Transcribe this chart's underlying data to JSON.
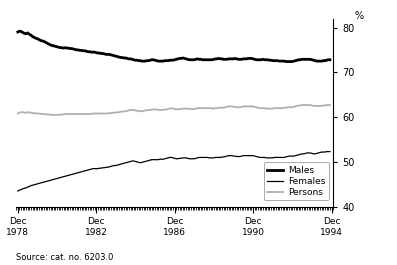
{
  "title": "",
  "ylabel": "%",
  "source_text": "Source: cat. no. 6203.0",
  "ylim": [
    40,
    82
  ],
  "yticks": [
    40,
    50,
    60,
    70,
    80
  ],
  "xtick_years": [
    1978,
    1982,
    1986,
    1990,
    1994
  ],
  "xtick_labels": [
    "Dec\n1978",
    "Dec\n1982",
    "Dec\n1986",
    "Dec\n1990",
    "Dec\n1994"
  ],
  "males_color": "#000000",
  "females_color": "#000000",
  "persons_color": "#b0b0b0",
  "males_lw": 2.0,
  "females_lw": 0.9,
  "persons_lw": 1.3,
  "males_data": [
    79.0,
    79.2,
    79.1,
    78.9,
    78.7,
    78.6,
    78.8,
    78.5,
    78.3,
    78.0,
    77.8,
    77.6,
    77.5,
    77.3,
    77.1,
    77.0,
    76.9,
    76.7,
    76.5,
    76.3,
    76.1,
    76.0,
    75.9,
    75.8,
    75.7,
    75.6,
    75.5,
    75.5,
    75.4,
    75.5,
    75.4,
    75.4,
    75.3,
    75.3,
    75.2,
    75.1,
    75.0,
    75.0,
    74.9,
    74.9,
    74.8,
    74.8,
    74.7,
    74.6,
    74.6,
    74.5,
    74.5,
    74.5,
    74.4,
    74.3,
    74.3,
    74.2,
    74.2,
    74.1,
    74.0,
    74.0,
    74.0,
    73.9,
    73.8,
    73.7,
    73.6,
    73.5,
    73.4,
    73.3,
    73.3,
    73.2,
    73.2,
    73.1,
    73.0,
    73.0,
    72.9,
    72.8,
    72.7,
    72.7,
    72.6,
    72.6,
    72.5,
    72.5,
    72.5,
    72.6,
    72.6,
    72.7,
    72.8,
    72.8,
    72.7,
    72.6,
    72.5,
    72.5,
    72.5,
    72.5,
    72.6,
    72.6,
    72.6,
    72.7,
    72.7,
    72.7,
    72.8,
    72.9,
    73.0,
    73.1,
    73.1,
    73.2,
    73.1,
    73.0,
    72.9,
    72.8,
    72.8,
    72.8,
    72.8,
    72.9,
    73.0,
    72.9,
    72.9,
    72.8,
    72.8,
    72.8,
    72.8,
    72.8,
    72.8,
    72.8,
    72.9,
    73.0,
    73.0,
    73.1,
    73.0,
    73.0,
    72.9,
    72.9,
    72.9,
    73.0,
    73.0,
    73.0,
    73.0,
    73.1,
    73.0,
    72.9,
    72.9,
    72.9,
    73.0,
    73.0,
    73.0,
    73.1,
    73.1,
    73.1,
    73.0,
    72.9,
    72.8,
    72.8,
    72.8,
    72.8,
    72.9,
    72.8,
    72.8,
    72.8,
    72.7,
    72.7,
    72.6,
    72.6,
    72.6,
    72.6,
    72.5,
    72.5,
    72.5,
    72.5,
    72.4,
    72.4,
    72.4,
    72.4,
    72.4,
    72.5,
    72.6,
    72.7,
    72.8,
    72.8,
    72.9,
    72.9,
    72.9,
    72.9,
    72.9,
    72.9,
    72.8,
    72.7,
    72.6,
    72.5,
    72.5,
    72.5,
    72.5,
    72.6,
    72.6,
    72.7,
    72.8,
    72.8
  ],
  "females_data": [
    43.5,
    43.7,
    43.8,
    44.0,
    44.1,
    44.2,
    44.4,
    44.5,
    44.7,
    44.8,
    44.9,
    45.0,
    45.1,
    45.2,
    45.3,
    45.4,
    45.5,
    45.6,
    45.7,
    45.8,
    45.9,
    46.0,
    46.1,
    46.2,
    46.3,
    46.4,
    46.5,
    46.6,
    46.7,
    46.8,
    46.9,
    47.0,
    47.1,
    47.2,
    47.3,
    47.4,
    47.5,
    47.6,
    47.7,
    47.8,
    47.9,
    48.0,
    48.1,
    48.2,
    48.3,
    48.4,
    48.5,
    48.5,
    48.5,
    48.5,
    48.6,
    48.6,
    48.7,
    48.7,
    48.8,
    48.8,
    48.9,
    49.0,
    49.1,
    49.2,
    49.2,
    49.3,
    49.4,
    49.5,
    49.6,
    49.7,
    49.8,
    49.9,
    50.0,
    50.1,
    50.2,
    50.2,
    50.1,
    50.0,
    49.9,
    49.8,
    49.9,
    50.0,
    50.1,
    50.2,
    50.3,
    50.4,
    50.5,
    50.5,
    50.5,
    50.5,
    50.5,
    50.6,
    50.6,
    50.6,
    50.7,
    50.8,
    50.9,
    51.0,
    51.0,
    50.9,
    50.8,
    50.7,
    50.7,
    50.8,
    50.8,
    50.9,
    50.9,
    50.9,
    50.8,
    50.7,
    50.7,
    50.7,
    50.7,
    50.8,
    50.9,
    51.0,
    51.0,
    51.0,
    51.0,
    51.0,
    51.0,
    50.9,
    50.9,
    50.9,
    50.9,
    51.0,
    51.0,
    51.0,
    51.0,
    51.1,
    51.1,
    51.2,
    51.3,
    51.4,
    51.4,
    51.4,
    51.3,
    51.3,
    51.2,
    51.2,
    51.2,
    51.3,
    51.4,
    51.4,
    51.4,
    51.4,
    51.4,
    51.4,
    51.4,
    51.3,
    51.2,
    51.1,
    51.0,
    51.0,
    51.0,
    51.0,
    50.9,
    50.9,
    50.9,
    50.9,
    50.9,
    51.0,
    51.0,
    51.0,
    51.0,
    51.0,
    51.0,
    51.0,
    51.1,
    51.2,
    51.3,
    51.3,
    51.3,
    51.3,
    51.4,
    51.5,
    51.6,
    51.7,
    51.8,
    51.8,
    51.9,
    52.0,
    52.0,
    52.0,
    51.9,
    51.8,
    51.8,
    51.9,
    52.0,
    52.1,
    52.2,
    52.2,
    52.2,
    52.3,
    52.3,
    52.3
  ],
  "persons_data": [
    60.8,
    61.0,
    61.1,
    61.1,
    61.0,
    61.0,
    61.1,
    61.0,
    61.0,
    60.9,
    60.9,
    60.8,
    60.8,
    60.8,
    60.7,
    60.7,
    60.7,
    60.6,
    60.6,
    60.6,
    60.5,
    60.5,
    60.5,
    60.5,
    60.5,
    60.5,
    60.5,
    60.6,
    60.6,
    60.7,
    60.7,
    60.7,
    60.7,
    60.7,
    60.7,
    60.7,
    60.7,
    60.7,
    60.7,
    60.7,
    60.7,
    60.7,
    60.7,
    60.7,
    60.7,
    60.7,
    60.8,
    60.8,
    60.8,
    60.8,
    60.8,
    60.8,
    60.8,
    60.8,
    60.8,
    60.8,
    60.9,
    60.9,
    61.0,
    61.0,
    61.0,
    61.1,
    61.1,
    61.2,
    61.2,
    61.3,
    61.3,
    61.4,
    61.5,
    61.6,
    61.6,
    61.6,
    61.5,
    61.4,
    61.4,
    61.3,
    61.3,
    61.4,
    61.5,
    61.5,
    61.6,
    61.6,
    61.7,
    61.7,
    61.7,
    61.7,
    61.6,
    61.6,
    61.6,
    61.6,
    61.7,
    61.7,
    61.8,
    61.9,
    62.0,
    61.9,
    61.8,
    61.8,
    61.7,
    61.8,
    61.8,
    61.9,
    61.9,
    61.9,
    61.9,
    61.8,
    61.8,
    61.8,
    61.8,
    61.9,
    62.0,
    62.0,
    62.0,
    62.0,
    62.0,
    62.0,
    62.0,
    62.0,
    62.0,
    61.9,
    61.9,
    62.0,
    62.0,
    62.1,
    62.1,
    62.1,
    62.1,
    62.2,
    62.3,
    62.4,
    62.4,
    62.4,
    62.3,
    62.3,
    62.2,
    62.2,
    62.2,
    62.3,
    62.4,
    62.4,
    62.4,
    62.4,
    62.4,
    62.4,
    62.4,
    62.3,
    62.2,
    62.1,
    62.0,
    62.0,
    62.0,
    62.0,
    61.9,
    61.9,
    61.9,
    61.9,
    61.9,
    62.0,
    62.0,
    62.0,
    62.0,
    62.0,
    62.0,
    62.1,
    62.1,
    62.2,
    62.2,
    62.2,
    62.2,
    62.3,
    62.4,
    62.5,
    62.6,
    62.6,
    62.7,
    62.7,
    62.7,
    62.7,
    62.7,
    62.7,
    62.6,
    62.5,
    62.5,
    62.5,
    62.5,
    62.5,
    62.5,
    62.6,
    62.6,
    62.7,
    62.7,
    62.7
  ]
}
